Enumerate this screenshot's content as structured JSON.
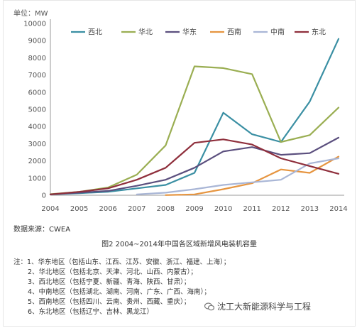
{
  "chart_data": {
    "type": "line",
    "ylabel": "单位：MW",
    "x": [
      "2004",
      "2005",
      "2006",
      "2007",
      "2008",
      "2009",
      "2010",
      "2011",
      "2012",
      "2013",
      "2014"
    ],
    "ylim": [
      0,
      10000
    ],
    "yticks": [
      "0",
      "1000",
      "2000",
      "3000",
      "4000",
      "5000",
      "6000",
      "7000",
      "8000",
      "9000",
      "10000"
    ],
    "grid": false,
    "legend_position": "top",
    "series": [
      {
        "name": "西北",
        "color": "#3a8fa3",
        "values": [
          50,
          120,
          200,
          400,
          600,
          1300,
          4800,
          3550,
          3100,
          5450,
          9100
        ]
      },
      {
        "name": "华北",
        "color": "#9aae52",
        "values": [
          60,
          200,
          450,
          1200,
          2900,
          7500,
          7400,
          7050,
          3100,
          3500,
          5100
        ]
      },
      {
        "name": "华东",
        "color": "#5b4f7e",
        "values": [
          50,
          150,
          250,
          550,
          900,
          1600,
          2550,
          2800,
          2350,
          2450,
          3350
        ]
      },
      {
        "name": "西南",
        "color": "#e69540",
        "values": [
          null,
          null,
          null,
          null,
          10,
          50,
          350,
          700,
          1500,
          1300,
          2250
        ]
      },
      {
        "name": "中南",
        "color": "#a9b6d6",
        "values": [
          null,
          null,
          null,
          50,
          150,
          350,
          600,
          750,
          900,
          1850,
          2150
        ]
      },
      {
        "name": "东北",
        "color": "#8f2f3c",
        "values": [
          50,
          200,
          400,
          900,
          1600,
          3050,
          3250,
          2950,
          2150,
          1700,
          1250
        ]
      }
    ]
  },
  "source_text": "数据来源：CWEA",
  "caption": "图2 2004~2014年中国各区域新增风电装机容量",
  "notes": [
    "注：1、华东地区（包括山东、江西、江苏、安徽、浙江、福建、上海）；",
    "2、华北地区（包括北京、天津、河北、山西、内蒙古）；",
    "3、西北地区（包括宁夏、新疆、青海、陕西、甘肃）；",
    "4、中南地区（包括湖北、湖南、河南、广东、广西、海南）；",
    "5、西南地区（包括四川、云南、贵州、西藏、重庆）；",
    "6、东北地区（包括辽宁、吉林、黑龙江）"
  ],
  "watermark": "沈工大新能源科学与工程",
  "colors": {
    "axis": "#999999",
    "text": "#555555"
  }
}
